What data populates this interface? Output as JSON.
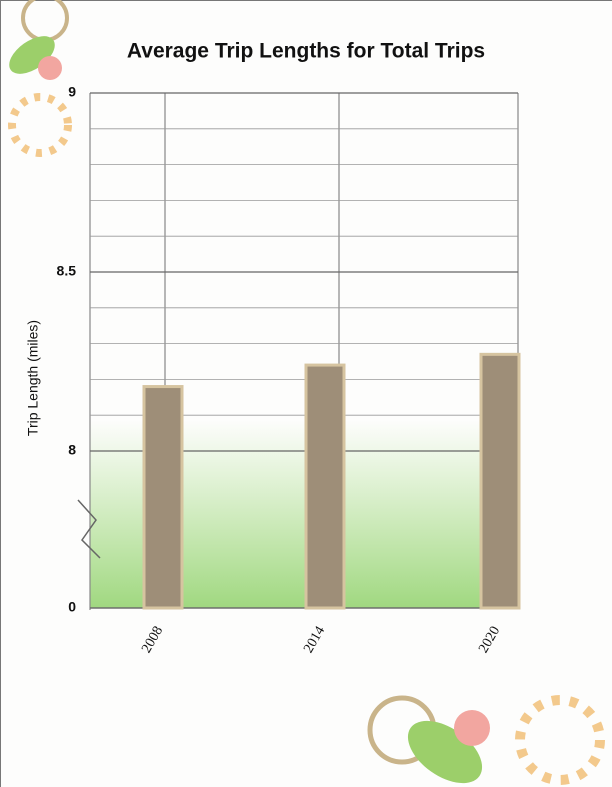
{
  "chart_data": {
    "type": "bar",
    "title": "Average Trip Lengths for Total Trips",
    "y_label": "Trip Length (miles)",
    "categories": [
      "2008",
      "2014",
      "2020"
    ],
    "values": [
      8.18,
      8.24,
      8.27
    ],
    "color": "#9e8e78",
    "edge_color": "#d6c4a0",
    "ylim": [
      0,
      9
    ],
    "yticks": [
      0,
      8,
      8.5,
      9
    ],
    "axis_break": [
      0,
      8
    ],
    "yminor": [
      8.1,
      8.2,
      8.3,
      8.4,
      8.6,
      8.7,
      8.8,
      8.9
    ],
    "grid": true
  }
}
